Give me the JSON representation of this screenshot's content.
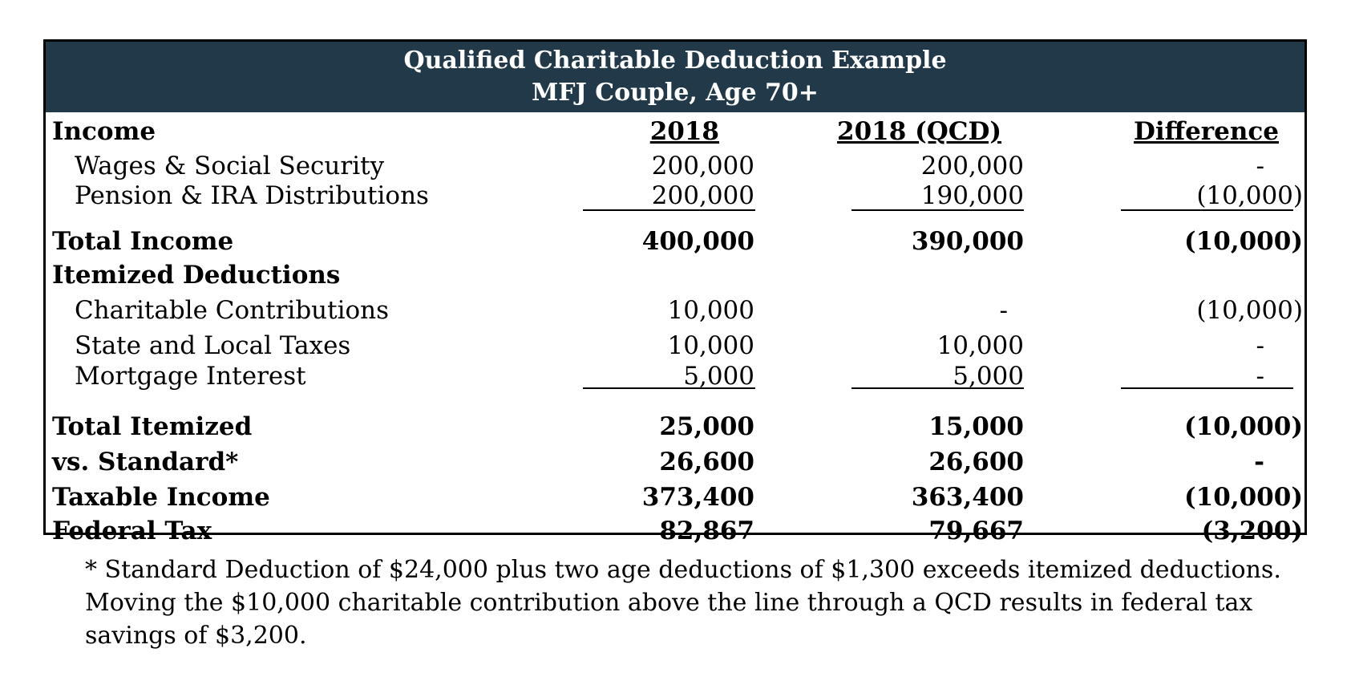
{
  "header": {
    "title": "Qualified Charitable Deduction Example",
    "subtitle": "MFJ Couple,  Age 70+"
  },
  "columns": {
    "label": "Income",
    "col1": "2018",
    "col2": "2018 (QCD)",
    "col3": "Difference"
  },
  "rows": [
    {
      "label": "Wages & Social Security",
      "v1": "200,000",
      "v2": "200,000",
      "v3": "-",
      "bold": false
    },
    {
      "label": "Pension & IRA Distributions",
      "v1": "200,000",
      "v2": "190,000",
      "v3": "(10,000)",
      "bold": false
    },
    {
      "label": "Total Income",
      "v1": "400,000",
      "v2": "390,000",
      "v3": "(10,000)",
      "bold": true
    },
    {
      "label": "Itemized Deductions",
      "v1": "",
      "v2": "",
      "v3": "",
      "bold": true
    },
    {
      "label": "Charitable Contributions",
      "v1": "10,000",
      "v2": "-",
      "v3": "(10,000)",
      "bold": false
    },
    {
      "label": "State and Local Taxes",
      "v1": "10,000",
      "v2": "10,000",
      "v3": "-",
      "bold": false
    },
    {
      "label": "Mortgage Interest",
      "v1": "5,000",
      "v2": "5,000",
      "v3": "-",
      "bold": false
    },
    {
      "label": "Total Itemized",
      "v1": "25,000",
      "v2": "15,000",
      "v3": "(10,000)",
      "bold": true
    },
    {
      "label": "vs. Standard*",
      "v1": "26,600",
      "v2": "26,600",
      "v3": "-",
      "bold": true
    },
    {
      "label": "Taxable Income",
      "v1": "373,400",
      "v2": "363,400",
      "v3": "(10,000)",
      "bold": true
    },
    {
      "label": "Federal Tax",
      "v1": "82,867",
      "v2": "79,667",
      "v3": "(3,200)",
      "bold": true
    }
  ],
  "footnote": "* Standard Deduction of $24,000 plus two age deductions of $1,300 exceeds itemized deductions. Moving the $10,000 charitable contribution above the line through a QCD results in federal tax savings of $3,200.",
  "colors": {
    "header_bg": "#22394a",
    "header_text": "#ffffff"
  }
}
